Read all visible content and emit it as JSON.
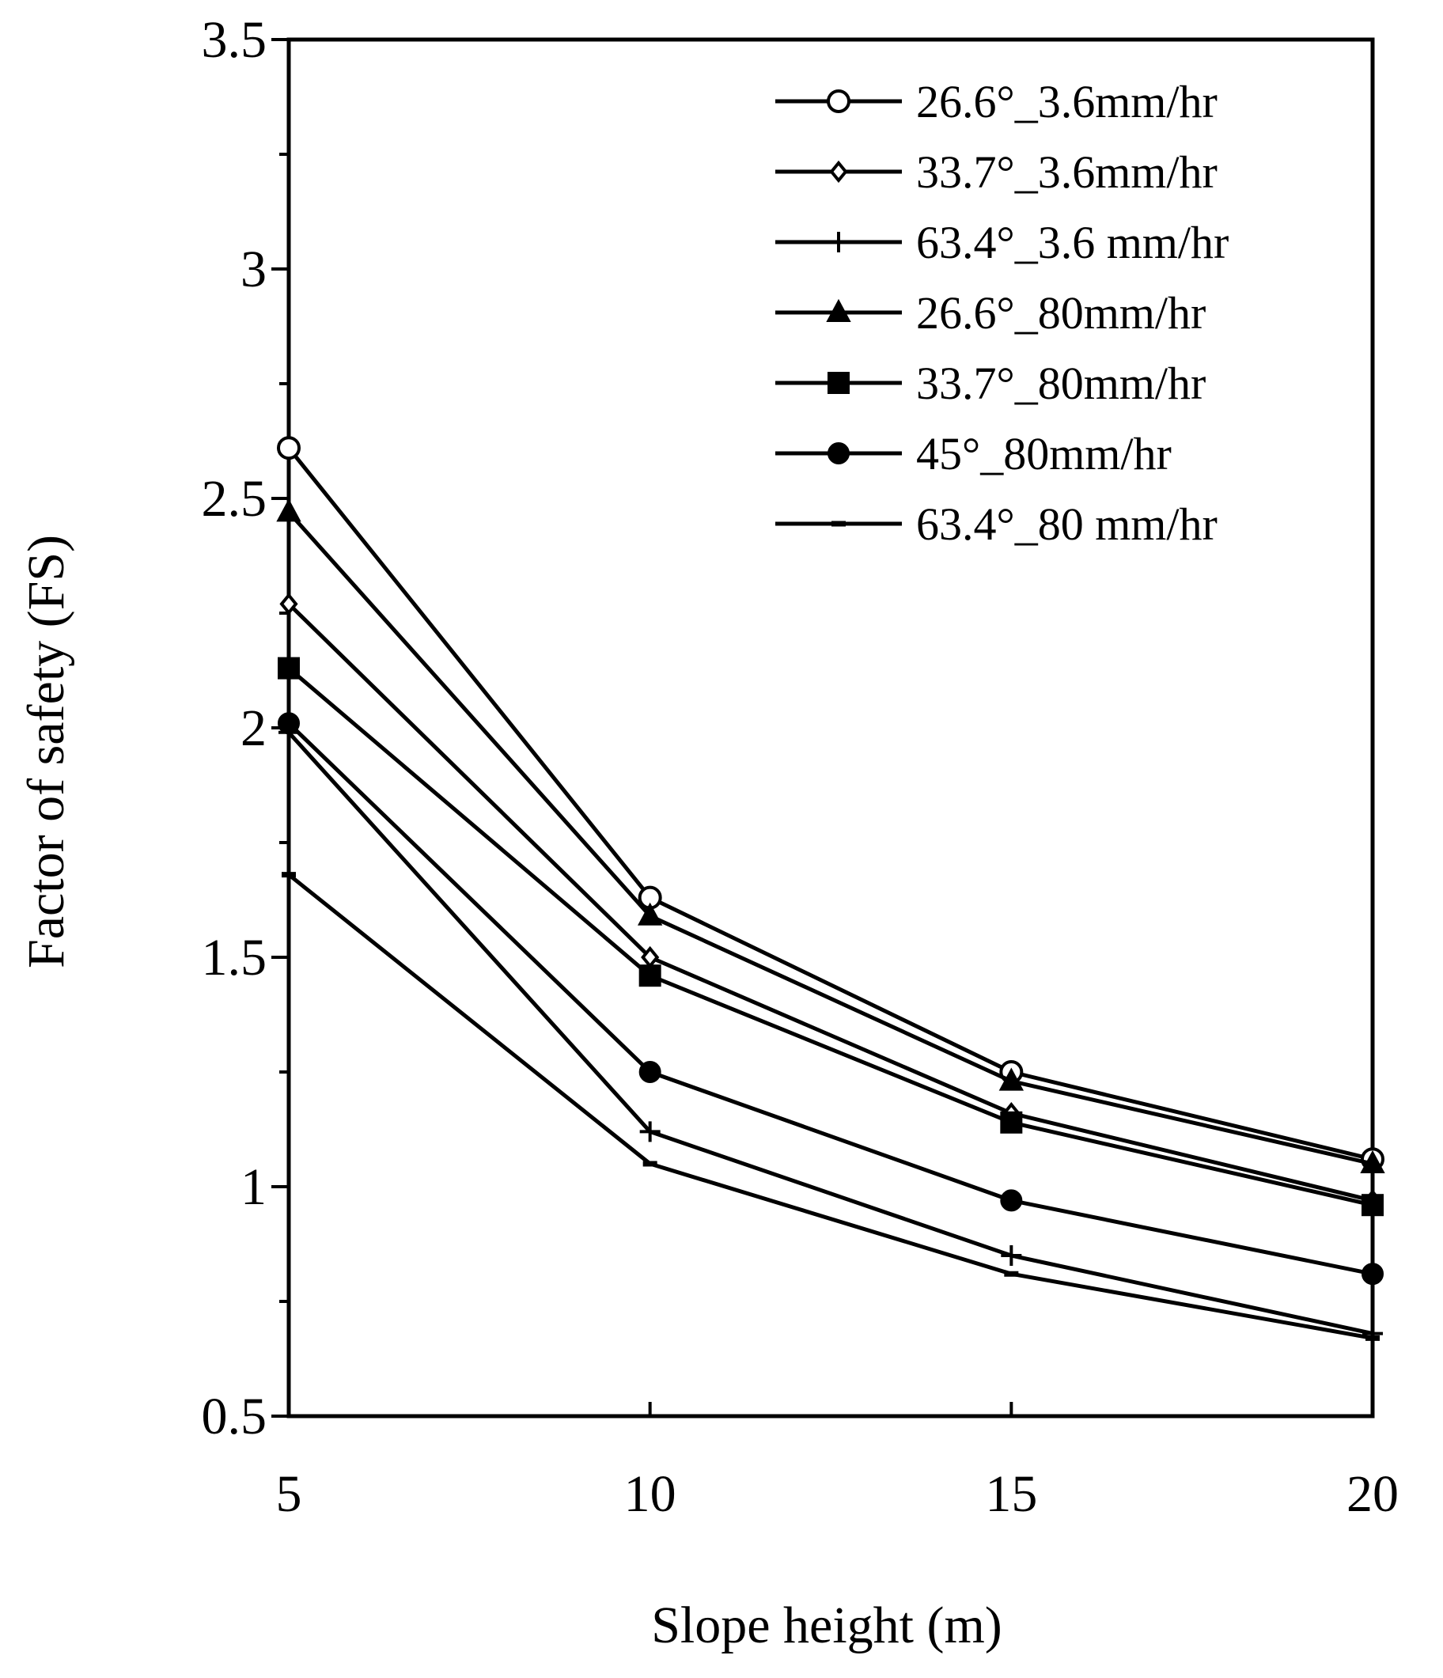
{
  "chart_data": {
    "type": "line",
    "title": "",
    "xlabel": "Slope height (m)",
    "ylabel": "Factor of safety (FS)",
    "x": [
      5,
      10,
      15,
      20
    ],
    "xlim": [
      5,
      20
    ],
    "ylim": [
      0.5,
      3.5
    ],
    "x_ticks": [
      5,
      10,
      15,
      20
    ],
    "x_tick_labels": [
      "5",
      "10",
      "15",
      "20"
    ],
    "y_ticks": [
      0.5,
      1,
      1.5,
      2,
      2.5,
      3,
      3.5
    ],
    "y_tick_labels": [
      "0.5",
      "1",
      "1.5",
      "2",
      "2.5",
      "3",
      "3.5"
    ],
    "grid": false,
    "legend_position": "top-right",
    "line_color": "#000000",
    "series": [
      {
        "name": "26.6°_3.6mm/hr",
        "marker": "open-circle",
        "values": [
          2.61,
          1.63,
          1.25,
          1.06
        ]
      },
      {
        "name": "33.7°_3.6mm/hr",
        "marker": "open-diamond",
        "values": [
          2.27,
          1.5,
          1.16,
          0.97
        ]
      },
      {
        "name": "63.4°_3.6 mm/hr",
        "marker": "plus",
        "values": [
          1.99,
          1.12,
          0.85,
          0.68
        ]
      },
      {
        "name": "26.6°_80mm/hr",
        "marker": "filled-triangle",
        "values": [
          2.47,
          1.59,
          1.23,
          1.05
        ]
      },
      {
        "name": "33.7°_80mm/hr",
        "marker": "filled-square",
        "values": [
          2.13,
          1.46,
          1.14,
          0.96
        ]
      },
      {
        "name": "45°_80mm/hr",
        "marker": "filled-circle",
        "values": [
          2.01,
          1.25,
          0.97,
          0.81
        ]
      },
      {
        "name": "63.4°_80 mm/hr",
        "marker": "dash",
        "values": [
          1.68,
          1.05,
          0.81,
          0.67
        ]
      }
    ]
  }
}
